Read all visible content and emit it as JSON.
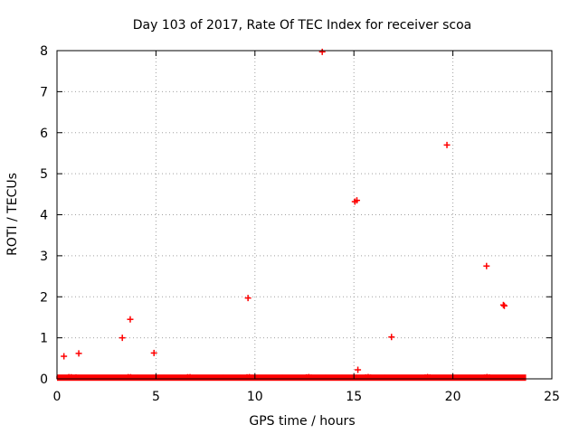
{
  "chart_data": {
    "type": "scatter",
    "title": "Day 103 of 2017, Rate Of TEC Index for receiver scoa",
    "xlabel": "GPS time / hours",
    "ylabel": "ROTI / TECUs",
    "xlim": [
      0,
      25
    ],
    "ylim": [
      0,
      8
    ],
    "x_ticks": [
      "0",
      "5",
      "10",
      "15",
      "20",
      "25"
    ],
    "y_ticks": [
      "0",
      "1",
      "2",
      "3",
      "4",
      "5",
      "6",
      "7",
      "8"
    ],
    "grid": true,
    "legend": "none",
    "marker": "+",
    "color": "#ff0000",
    "baseline_band": {
      "x_range": [
        0,
        23.7
      ],
      "y_range": [
        0,
        0.12
      ]
    },
    "series": [
      {
        "x": [
          0.35,
          1.1,
          3.3,
          3.7,
          4.9,
          9.65,
          13.4,
          15.05,
          15.15,
          15.2,
          16.9,
          19.7,
          21.7,
          22.55,
          22.6
        ],
        "y": [
          0.55,
          0.62,
          1.0,
          1.45,
          0.63,
          1.97,
          7.97,
          4.32,
          4.35,
          0.22,
          1.02,
          5.7,
          2.75,
          1.8,
          1.78
        ]
      }
    ]
  }
}
